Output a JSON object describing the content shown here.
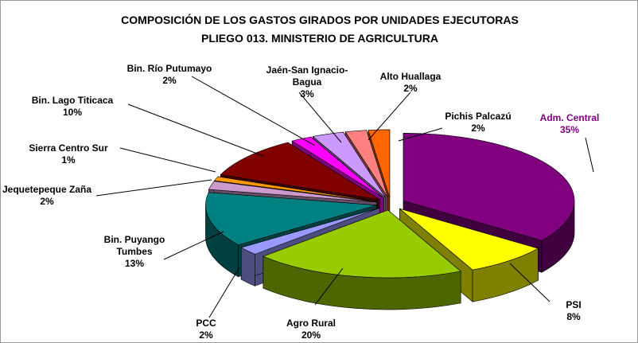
{
  "chart_data": {
    "type": "pie",
    "title": "COMPOSICIÓN DE LOS GASTOS GIRADOS POR UNIDADES EJECUTORAS",
    "subtitle": "PLIEGO 013. MINISTERIO DE AGRICULTURA",
    "categories": [
      "Adm. Central",
      "PSI",
      "Agro Rural",
      "PCC",
      "Bin. Puyango Tumbes",
      "Jequetepeque Zaña",
      "Sierra Centro Sur",
      "Bin. Lago Titicaca",
      "Bin. Río Putumayo",
      "Jaén-San Ignacio-Bagua",
      "Alto Huallaga",
      "Pichis Palcazú"
    ],
    "values": [
      35,
      8,
      20,
      2,
      13,
      2,
      1,
      10,
      2,
      3,
      2,
      2
    ],
    "value_labels": [
      "35%",
      "8%",
      "20%",
      "2%",
      "13%",
      "2%",
      "1%",
      "10%",
      "2%",
      "3%",
      "2%",
      "2%"
    ],
    "colors": [
      "#800080",
      "#ffff00",
      "#99cc00",
      "#9999ff",
      "#008080",
      "#cc99cc",
      "#ff9900",
      "#800000",
      "#ff00ff",
      "#cc99ff",
      "#ff8080",
      "#ff6600"
    ]
  }
}
